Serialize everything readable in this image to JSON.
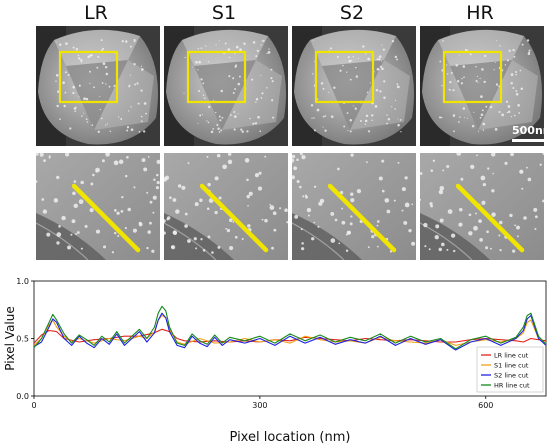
{
  "panels": {
    "titles": [
      "LR",
      "S1",
      "S2",
      "HR"
    ],
    "scale_bar_label": "500nm"
  },
  "colors": {
    "highlight": "#f0e400",
    "LR": "#e3231c",
    "S1": "#f2a114",
    "S2": "#1f22e6",
    "HR": "#178a1c"
  },
  "chart_data": {
    "type": "line",
    "xlabel": "Pixel location (nm)",
    "ylabel": "Pixel Value",
    "xlim": [
      0,
      680
    ],
    "ylim": [
      0.0,
      1.0
    ],
    "xticks": [
      "0",
      "300",
      "600"
    ],
    "yticks": [
      "0.0",
      "0.5",
      "1.0"
    ],
    "legend_position": "bottom-right",
    "series": [
      {
        "name": "LR line cut",
        "color": "#e3231c",
        "x": [
          0,
          10,
          20,
          30,
          40,
          60,
          80,
          100,
          120,
          140,
          160,
          170,
          180,
          190,
          200,
          220,
          240,
          260,
          280,
          300,
          320,
          340,
          360,
          380,
          400,
          420,
          440,
          460,
          480,
          500,
          520,
          540,
          560,
          580,
          600,
          620,
          640,
          650,
          660,
          670,
          680
        ],
        "y": [
          0.46,
          0.53,
          0.57,
          0.56,
          0.5,
          0.47,
          0.49,
          0.5,
          0.52,
          0.52,
          0.55,
          0.58,
          0.56,
          0.5,
          0.48,
          0.47,
          0.48,
          0.47,
          0.48,
          0.47,
          0.49,
          0.48,
          0.51,
          0.5,
          0.49,
          0.48,
          0.5,
          0.49,
          0.48,
          0.49,
          0.48,
          0.47,
          0.47,
          0.49,
          0.5,
          0.49,
          0.48,
          0.47,
          0.5,
          0.49,
          0.48
        ]
      },
      {
        "name": "S1 line cut",
        "color": "#f2a114",
        "x": [
          0,
          10,
          20,
          25,
          30,
          40,
          50,
          60,
          80,
          100,
          120,
          140,
          150,
          160,
          165,
          170,
          175,
          180,
          190,
          200,
          220,
          240,
          260,
          280,
          300,
          320,
          340,
          360,
          380,
          400,
          420,
          440,
          460,
          480,
          500,
          520,
          540,
          560,
          580,
          600,
          620,
          640,
          650,
          655,
          660,
          665,
          670,
          680
        ],
        "y": [
          0.44,
          0.5,
          0.62,
          0.66,
          0.6,
          0.52,
          0.47,
          0.5,
          0.46,
          0.5,
          0.48,
          0.52,
          0.5,
          0.56,
          0.66,
          0.7,
          0.68,
          0.58,
          0.47,
          0.45,
          0.5,
          0.46,
          0.47,
          0.5,
          0.47,
          0.49,
          0.46,
          0.52,
          0.49,
          0.47,
          0.48,
          0.46,
          0.51,
          0.48,
          0.47,
          0.46,
          0.49,
          0.44,
          0.47,
          0.49,
          0.47,
          0.5,
          0.55,
          0.64,
          0.66,
          0.58,
          0.5,
          0.46
        ]
      },
      {
        "name": "S2 line cut",
        "color": "#1f22e6",
        "x": [
          0,
          10,
          20,
          25,
          30,
          40,
          50,
          60,
          70,
          80,
          90,
          100,
          110,
          120,
          130,
          140,
          150,
          160,
          165,
          170,
          175,
          180,
          190,
          200,
          210,
          220,
          230,
          240,
          250,
          260,
          280,
          300,
          320,
          340,
          360,
          380,
          400,
          420,
          440,
          460,
          480,
          500,
          520,
          540,
          560,
          580,
          600,
          620,
          640,
          650,
          655,
          660,
          665,
          670,
          680
        ],
        "y": [
          0.43,
          0.47,
          0.6,
          0.67,
          0.64,
          0.5,
          0.44,
          0.52,
          0.46,
          0.42,
          0.5,
          0.45,
          0.54,
          0.44,
          0.5,
          0.56,
          0.47,
          0.55,
          0.66,
          0.72,
          0.68,
          0.56,
          0.44,
          0.42,
          0.52,
          0.46,
          0.43,
          0.51,
          0.44,
          0.49,
          0.46,
          0.5,
          0.44,
          0.52,
          0.46,
          0.51,
          0.45,
          0.49,
          0.46,
          0.52,
          0.44,
          0.5,
          0.45,
          0.49,
          0.4,
          0.47,
          0.5,
          0.44,
          0.5,
          0.57,
          0.67,
          0.7,
          0.6,
          0.5,
          0.44
        ]
      },
      {
        "name": "HR line cut",
        "color": "#178a1c",
        "x": [
          0,
          10,
          20,
          25,
          30,
          40,
          50,
          60,
          70,
          80,
          90,
          100,
          110,
          120,
          130,
          140,
          150,
          160,
          165,
          170,
          175,
          180,
          190,
          200,
          210,
          220,
          230,
          240,
          250,
          260,
          280,
          300,
          320,
          340,
          360,
          380,
          400,
          420,
          440,
          460,
          480,
          500,
          520,
          540,
          560,
          580,
          600,
          620,
          640,
          650,
          655,
          660,
          665,
          670,
          680
        ],
        "y": [
          0.42,
          0.5,
          0.64,
          0.71,
          0.66,
          0.54,
          0.46,
          0.53,
          0.49,
          0.44,
          0.52,
          0.47,
          0.56,
          0.46,
          0.52,
          0.58,
          0.5,
          0.6,
          0.72,
          0.78,
          0.74,
          0.6,
          0.46,
          0.44,
          0.54,
          0.48,
          0.45,
          0.53,
          0.46,
          0.51,
          0.48,
          0.52,
          0.46,
          0.54,
          0.48,
          0.53,
          0.47,
          0.51,
          0.48,
          0.54,
          0.46,
          0.52,
          0.47,
          0.5,
          0.41,
          0.49,
          0.52,
          0.46,
          0.51,
          0.6,
          0.7,
          0.72,
          0.62,
          0.52,
          0.45
        ]
      }
    ]
  }
}
